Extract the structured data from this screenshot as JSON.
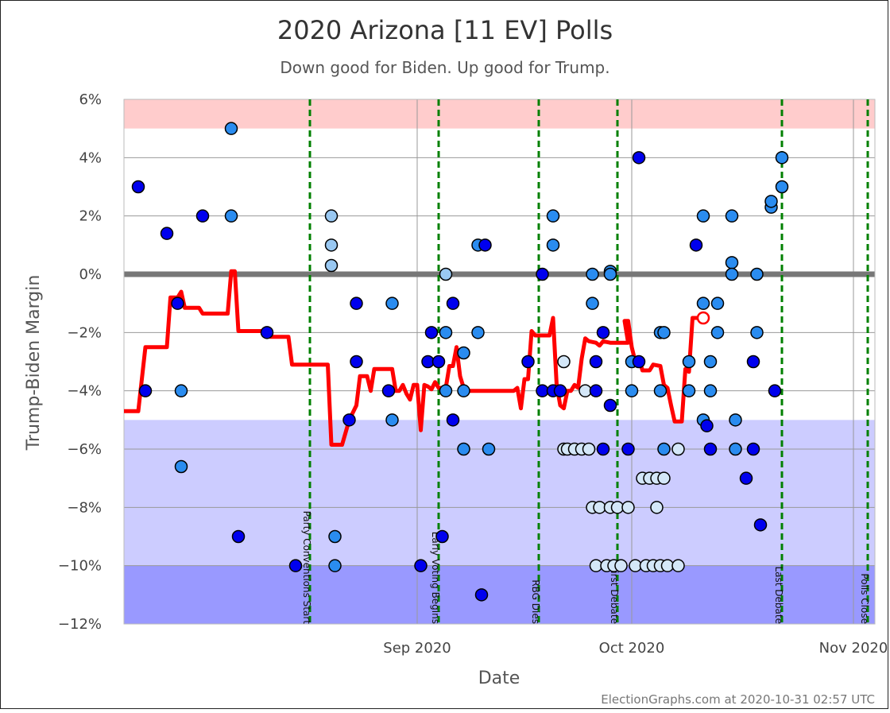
{
  "chart_data": {
    "type": "scatter",
    "title": "2020 Arizona [11 EV] Polls",
    "subtitle": "Down good for Biden. Up good for Trump.",
    "xlabel": "Date",
    "ylabel": "Trump-Biden Margin",
    "credit": "ElectionGraphs.com at 2020-10-31 02:57 UTC",
    "xlim": [
      "2020-07-22",
      "2020-11-04"
    ],
    "ylim": [
      -12,
      6
    ],
    "yticks": [
      {
        "value": 6,
        "label": "6%"
      },
      {
        "value": 4,
        "label": "4%"
      },
      {
        "value": 2,
        "label": "2%"
      },
      {
        "value": 0,
        "label": "0%"
      },
      {
        "value": -2,
        "label": "−2%"
      },
      {
        "value": -4,
        "label": "−4%"
      },
      {
        "value": -6,
        "label": "−6%"
      },
      {
        "value": -8,
        "label": "−8%"
      },
      {
        "value": -10,
        "label": "−10%"
      },
      {
        "value": -12,
        "label": "−12%"
      }
    ],
    "xticks": [
      {
        "date": "2020-09-01",
        "label": "Sep 2020"
      },
      {
        "date": "2020-10-01",
        "label": "Oct 2020"
      },
      {
        "date": "2020-11-01",
        "label": "Nov 2020"
      }
    ],
    "bands": [
      {
        "from": 5,
        "to": 6,
        "color": "#ffcccc"
      },
      {
        "from": -10,
        "to": -5,
        "color": "#ccccff"
      },
      {
        "from": -12,
        "to": -10,
        "color": "#9999ff"
      }
    ],
    "colors": {
      "average_line": "#ff0000",
      "event_line": "#008000",
      "zero_line": "#777777",
      "grid": "#999999",
      "poll_dark": "#0000ee",
      "poll_mid": "#2a8cf0",
      "poll_light": "#99c8f2",
      "poll_pale": "#d4e7f8"
    },
    "events": [
      {
        "date": "2020-08-17",
        "label": "Party Conventions Start"
      },
      {
        "date": "2020-09-04",
        "label": "Early Voting Begins"
      },
      {
        "date": "2020-09-18",
        "label": "RBG Dies"
      },
      {
        "date": "2020-09-29",
        "label": "First Debate"
      },
      {
        "date": "2020-10-22",
        "label": "Last Debate"
      },
      {
        "date": "2020-11-03",
        "label": "Polls Close"
      }
    ],
    "polls": [
      {
        "date": "2020-07-24",
        "margin": 3,
        "shade": "dark"
      },
      {
        "date": "2020-07-25",
        "margin": -4,
        "shade": "dark"
      },
      {
        "date": "2020-07-28",
        "margin": 1.4,
        "shade": "dark"
      },
      {
        "date": "2020-07-29.5",
        "margin": -1,
        "shade": "dark"
      },
      {
        "date": "2020-07-30",
        "margin": -4,
        "shade": "mid"
      },
      {
        "date": "2020-07-30",
        "margin": -6.6,
        "shade": "mid"
      },
      {
        "date": "2020-08-02",
        "margin": 2,
        "shade": "dark"
      },
      {
        "date": "2020-08-06",
        "margin": 5,
        "shade": "mid"
      },
      {
        "date": "2020-08-06",
        "margin": 2,
        "shade": "mid"
      },
      {
        "date": "2020-08-07",
        "margin": -9,
        "shade": "dark"
      },
      {
        "date": "2020-08-11",
        "margin": -2,
        "shade": "dark"
      },
      {
        "date": "2020-08-15",
        "margin": -10,
        "shade": "dark"
      },
      {
        "date": "2020-08-20",
        "margin": 2,
        "shade": "light"
      },
      {
        "date": "2020-08-20",
        "margin": 1,
        "shade": "light"
      },
      {
        "date": "2020-08-20",
        "margin": 0.3,
        "shade": "light"
      },
      {
        "date": "2020-08-20.5",
        "margin": -9,
        "shade": "mid"
      },
      {
        "date": "2020-08-20.5",
        "margin": -10,
        "shade": "mid"
      },
      {
        "date": "2020-08-22.5",
        "margin": -5,
        "shade": "dark"
      },
      {
        "date": "2020-08-23.5",
        "margin": -1,
        "shade": "dark"
      },
      {
        "date": "2020-08-23.5",
        "margin": -3,
        "shade": "dark"
      },
      {
        "date": "2020-08-28.5",
        "margin": -1,
        "shade": "mid"
      },
      {
        "date": "2020-08-28",
        "margin": -4,
        "shade": "dark"
      },
      {
        "date": "2020-08-28.5",
        "margin": -5,
        "shade": "mid"
      },
      {
        "date": "2020-09-01.5",
        "margin": -10,
        "shade": "dark"
      },
      {
        "date": "2020-09-02.5",
        "margin": -3,
        "shade": "dark"
      },
      {
        "date": "2020-09-03",
        "margin": -2,
        "shade": "dark"
      },
      {
        "date": "2020-09-04",
        "margin": -3,
        "shade": "dark"
      },
      {
        "date": "2020-09-04.5",
        "margin": -9,
        "shade": "dark"
      },
      {
        "date": "2020-09-05",
        "margin": 0,
        "shade": "light"
      },
      {
        "date": "2020-09-05",
        "margin": -2,
        "shade": "mid"
      },
      {
        "date": "2020-09-05",
        "margin": -4,
        "shade": "mid"
      },
      {
        "date": "2020-09-06",
        "margin": -1,
        "shade": "dark"
      },
      {
        "date": "2020-09-06",
        "margin": -5,
        "shade": "dark"
      },
      {
        "date": "2020-09-07.5",
        "margin": -2.7,
        "shade": "mid"
      },
      {
        "date": "2020-09-07.5",
        "margin": -4,
        "shade": "mid"
      },
      {
        "date": "2020-09-07.5",
        "margin": -6,
        "shade": "mid"
      },
      {
        "date": "2020-09-09.5",
        "margin": 1,
        "shade": "mid"
      },
      {
        "date": "2020-09-09.5",
        "margin": -2,
        "shade": "mid"
      },
      {
        "date": "2020-09-10.5",
        "margin": 1,
        "shade": "dark"
      },
      {
        "date": "2020-09-11",
        "margin": -6,
        "shade": "mid"
      },
      {
        "date": "2020-09-10",
        "margin": -11,
        "shade": "dark"
      },
      {
        "date": "2020-09-16.5",
        "margin": -3,
        "shade": "dark"
      },
      {
        "date": "2020-09-18.5",
        "margin": 0,
        "shade": "dark"
      },
      {
        "date": "2020-09-18.5",
        "margin": -4,
        "shade": "dark"
      },
      {
        "date": "2020-09-20",
        "margin": 2,
        "shade": "mid"
      },
      {
        "date": "2020-09-20",
        "margin": 1,
        "shade": "mid"
      },
      {
        "date": "2020-09-20",
        "margin": -4,
        "shade": "dark"
      },
      {
        "date": "2020-09-21",
        "margin": -4,
        "shade": "dark"
      },
      {
        "date": "2020-09-21.5",
        "margin": -3,
        "shade": "pale"
      },
      {
        "date": "2020-09-21.5",
        "margin": -6,
        "shade": "pale"
      },
      {
        "date": "2020-09-22",
        "margin": -6,
        "shade": "pale"
      },
      {
        "date": "2020-09-23",
        "margin": -6,
        "shade": "pale"
      },
      {
        "date": "2020-09-24",
        "margin": -6,
        "shade": "pale"
      },
      {
        "date": "2020-09-24.5",
        "margin": -4,
        "shade": "pale"
      },
      {
        "date": "2020-09-25",
        "margin": -6,
        "shade": "pale"
      },
      {
        "date": "2020-09-25.5",
        "margin": -1,
        "shade": "mid"
      },
      {
        "date": "2020-09-25.5",
        "margin": 0,
        "shade": "mid"
      },
      {
        "date": "2020-09-25.5",
        "margin": -8,
        "shade": "pale"
      },
      {
        "date": "2020-09-26",
        "margin": -4,
        "shade": "dark"
      },
      {
        "date": "2020-09-26",
        "margin": -3,
        "shade": "dark"
      },
      {
        "date": "2020-09-26",
        "margin": -10,
        "shade": "pale"
      },
      {
        "date": "2020-09-26.5",
        "margin": -8,
        "shade": "pale"
      },
      {
        "date": "2020-09-27",
        "margin": -2,
        "shade": "dark"
      },
      {
        "date": "2020-09-27",
        "margin": -6,
        "shade": "dark"
      },
      {
        "date": "2020-09-27.5",
        "margin": -10,
        "shade": "pale"
      },
      {
        "date": "2020-09-28",
        "margin": -8,
        "shade": "pale"
      },
      {
        "date": "2020-09-28",
        "margin": 0.1,
        "shade": "mid"
      },
      {
        "date": "2020-09-28",
        "margin": 0,
        "shade": "mid"
      },
      {
        "date": "2020-09-28",
        "margin": -4.5,
        "shade": "dark"
      },
      {
        "date": "2020-09-28.5",
        "margin": -10,
        "shade": "pale"
      },
      {
        "date": "2020-09-29",
        "margin": -8,
        "shade": "pale"
      },
      {
        "date": "2020-09-29.5",
        "margin": -10,
        "shade": "pale"
      },
      {
        "date": "2020-09-30.5",
        "margin": -8,
        "shade": "pale"
      },
      {
        "date": "2020-09-30.5",
        "margin": -6,
        "shade": "dark"
      },
      {
        "date": "2020-10-01",
        "margin": -3,
        "shade": "mid"
      },
      {
        "date": "2020-10-01",
        "margin": -4,
        "shade": "mid"
      },
      {
        "date": "2020-10-01.5",
        "margin": -10,
        "shade": "pale"
      },
      {
        "date": "2020-10-02",
        "margin": -3,
        "shade": "dark"
      },
      {
        "date": "2020-10-02",
        "margin": 4,
        "shade": "dark"
      },
      {
        "date": "2020-10-02.5",
        "margin": -7,
        "shade": "pale"
      },
      {
        "date": "2020-10-03",
        "margin": -10,
        "shade": "pale"
      },
      {
        "date": "2020-10-03.5",
        "margin": -7,
        "shade": "pale"
      },
      {
        "date": "2020-10-04",
        "margin": -10,
        "shade": "pale"
      },
      {
        "date": "2020-10-04.5",
        "margin": -7,
        "shade": "pale"
      },
      {
        "date": "2020-10-04.5",
        "margin": -8,
        "shade": "pale"
      },
      {
        "date": "2020-10-05",
        "margin": -10,
        "shade": "pale"
      },
      {
        "date": "2020-10-05",
        "margin": -2,
        "shade": "mid"
      },
      {
        "date": "2020-10-05",
        "margin": -4,
        "shade": "mid"
      },
      {
        "date": "2020-10-05.5",
        "margin": -2,
        "shade": "mid"
      },
      {
        "date": "2020-10-05.5",
        "margin": -6,
        "shade": "mid"
      },
      {
        "date": "2020-10-05.5",
        "margin": -7,
        "shade": "pale"
      },
      {
        "date": "2020-10-06",
        "margin": -10,
        "shade": "pale"
      },
      {
        "date": "2020-10-07.5",
        "margin": -6,
        "shade": "pale"
      },
      {
        "date": "2020-10-07.5",
        "margin": -10,
        "shade": "pale"
      },
      {
        "date": "2020-10-09",
        "margin": -3,
        "shade": "mid"
      },
      {
        "date": "2020-10-09",
        "margin": -4,
        "shade": "mid"
      },
      {
        "date": "2020-10-10",
        "margin": 1,
        "shade": "dark"
      },
      {
        "date": "2020-10-11",
        "margin": 2,
        "shade": "mid"
      },
      {
        "date": "2020-10-11",
        "margin": -1,
        "shade": "mid"
      },
      {
        "date": "2020-10-11",
        "margin": -5,
        "shade": "mid"
      },
      {
        "date": "2020-10-11.5",
        "margin": -5.2,
        "shade": "dark"
      },
      {
        "date": "2020-10-12",
        "margin": -3,
        "shade": "mid"
      },
      {
        "date": "2020-10-12",
        "margin": -4,
        "shade": "mid"
      },
      {
        "date": "2020-10-12",
        "margin": -6,
        "shade": "dark"
      },
      {
        "date": "2020-10-13",
        "margin": -1,
        "shade": "mid"
      },
      {
        "date": "2020-10-13",
        "margin": -2,
        "shade": "mid"
      },
      {
        "date": "2020-10-15",
        "margin": 2,
        "shade": "mid"
      },
      {
        "date": "2020-10-15",
        "margin": 0.4,
        "shade": "mid"
      },
      {
        "date": "2020-10-15",
        "margin": 0,
        "shade": "mid"
      },
      {
        "date": "2020-10-15.5",
        "margin": -5,
        "shade": "mid"
      },
      {
        "date": "2020-10-15.5",
        "margin": -6,
        "shade": "mid"
      },
      {
        "date": "2020-10-17",
        "margin": -7,
        "shade": "dark"
      },
      {
        "date": "2020-10-18",
        "margin": -3,
        "shade": "dark"
      },
      {
        "date": "2020-10-18",
        "margin": -6,
        "shade": "dark"
      },
      {
        "date": "2020-10-18.5",
        "margin": 0,
        "shade": "mid"
      },
      {
        "date": "2020-10-18.5",
        "margin": -2,
        "shade": "mid"
      },
      {
        "date": "2020-10-19",
        "margin": -8.6,
        "shade": "dark"
      },
      {
        "date": "2020-10-20.5",
        "margin": 2.3,
        "shade": "mid"
      },
      {
        "date": "2020-10-20.5",
        "margin": 2.5,
        "shade": "mid"
      },
      {
        "date": "2020-10-21",
        "margin": -4,
        "shade": "dark"
      },
      {
        "date": "2020-10-22",
        "margin": 3,
        "shade": "mid"
      },
      {
        "date": "2020-10-22",
        "margin": 4,
        "shade": "mid"
      }
    ],
    "average": [
      [
        "2020-07-22",
        -4.7
      ],
      [
        "2020-07-24",
        -4.7
      ],
      [
        "2020-07-25",
        -2.5
      ],
      [
        "2020-07-28",
        -2.5
      ],
      [
        "2020-07-28.5",
        -0.8
      ],
      [
        "2020-07-29.5",
        -0.8
      ],
      [
        "2020-07-30",
        -0.6
      ],
      [
        "2020-07-30.5",
        -1.15
      ],
      [
        "2020-08-01.5",
        -1.15
      ],
      [
        "2020-08-02",
        -1.35
      ],
      [
        "2020-08-05.5",
        -1.35
      ],
      [
        "2020-08-06",
        0.1
      ],
      [
        "2020-08-06.5",
        0.1
      ],
      [
        "2020-08-07",
        -1.95
      ],
      [
        "2020-08-11",
        -1.95
      ],
      [
        "2020-08-11.5",
        -2.15
      ],
      [
        "2020-08-14",
        -2.15
      ],
      [
        "2020-08-14.5",
        -3.1
      ],
      [
        "2020-08-19.5",
        -3.1
      ],
      [
        "2020-08-20",
        -5.85
      ],
      [
        "2020-08-21.5",
        -5.85
      ],
      [
        "2020-08-22.5",
        -5.0
      ],
      [
        "2020-08-23.5",
        -4.5
      ],
      [
        "2020-08-24",
        -3.5
      ],
      [
        "2020-08-25",
        -3.5
      ],
      [
        "2020-08-25.5",
        -4.0
      ],
      [
        "2020-08-26",
        -3.25
      ],
      [
        "2020-08-28.5",
        -3.25
      ],
      [
        "2020-08-29",
        -4.0
      ],
      [
        "2020-08-29.5",
        -4.0
      ],
      [
        "2020-08-30",
        -3.8
      ],
      [
        "2020-08-30.5",
        -4.1
      ],
      [
        "2020-08-31",
        -4.3
      ],
      [
        "2020-08-31.5",
        -3.8
      ],
      [
        "2020-09-01",
        -3.8
      ],
      [
        "2020-09-01.5",
        -5.35
      ],
      [
        "2020-09-02",
        -3.8
      ],
      [
        "2020-09-02.5",
        -3.85
      ],
      [
        "2020-09-03",
        -3.95
      ],
      [
        "2020-09-03.5",
        -3.7
      ],
      [
        "2020-09-04",
        -3.9
      ],
      [
        "2020-09-05",
        -3.9
      ],
      [
        "2020-09-05.5",
        -3.15
      ],
      [
        "2020-09-06",
        -3.15
      ],
      [
        "2020-09-06.5",
        -2.5
      ],
      [
        "2020-09-07",
        -3.5
      ],
      [
        "2020-09-07.5",
        -3.9
      ],
      [
        "2020-09-08",
        -4.0
      ],
      [
        "2020-09-09",
        -4.0
      ],
      [
        "2020-09-14.5",
        -4.0
      ],
      [
        "2020-09-15",
        -3.9
      ],
      [
        "2020-09-15.5",
        -4.6
      ],
      [
        "2020-09-16",
        -3.6
      ],
      [
        "2020-09-16.5",
        -3.6
      ],
      [
        "2020-09-17",
        -1.95
      ],
      [
        "2020-09-17.5",
        -2.1
      ],
      [
        "2020-09-19.5",
        -2.1
      ],
      [
        "2020-09-20",
        -1.5
      ],
      [
        "2020-09-20.5",
        -3.8
      ],
      [
        "2020-09-21",
        -4.5
      ],
      [
        "2020-09-21.5",
        -4.6
      ],
      [
        "2020-09-22",
        -4.0
      ],
      [
        "2020-09-22.5",
        -4.0
      ],
      [
        "2020-09-23",
        -3.8
      ],
      [
        "2020-09-23.5",
        -3.9
      ],
      [
        "2020-09-24",
        -2.9
      ],
      [
        "2020-09-24.5",
        -2.2
      ],
      [
        "2020-09-25",
        -2.3
      ],
      [
        "2020-09-26",
        -2.35
      ],
      [
        "2020-09-26.5",
        -2.45
      ],
      [
        "2020-09-27",
        -2.3
      ],
      [
        "2020-09-28",
        -2.35
      ],
      [
        "2020-09-29.5",
        -2.35
      ],
      [
        "2020-09-30.5",
        -2.35
      ],
      [
        "2020-09-30",
        -1.6
      ],
      [
        "2020-09-30.5",
        -1.6
      ],
      [
        "2020-10-01",
        -2.5
      ],
      [
        "2020-10-01.5",
        -3.0
      ],
      [
        "2020-10-02",
        -2.9
      ],
      [
        "2020-10-02.5",
        -3.3
      ],
      [
        "2020-10-03.5",
        -3.3
      ],
      [
        "2020-10-04",
        -3.1
      ],
      [
        "2020-10-05",
        -3.15
      ],
      [
        "2020-10-05.5",
        -3.8
      ],
      [
        "2020-10-06",
        -3.9
      ],
      [
        "2020-10-06.5",
        -4.5
      ],
      [
        "2020-10-07",
        -5.05
      ],
      [
        "2020-10-08",
        -5.05
      ],
      [
        "2020-10-08.5",
        -3.25
      ],
      [
        "2020-10-09",
        -3.35
      ],
      [
        "2020-10-09.5",
        -1.5
      ],
      [
        "2020-10-10.5",
        -1.5
      ]
    ],
    "average_last": {
      "date": "2020-10-11",
      "margin": -1.5
    }
  }
}
